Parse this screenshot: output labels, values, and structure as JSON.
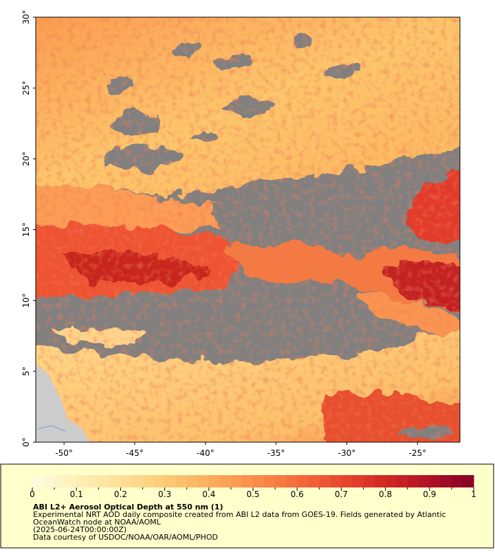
{
  "map": {
    "lon_range": [
      -52,
      -22
    ],
    "lat_range": [
      0,
      30
    ],
    "lon_ticks": [
      {
        "value": -50,
        "label": "-50°"
      },
      {
        "value": -45,
        "label": "-45°"
      },
      {
        "value": -40,
        "label": "-40°"
      },
      {
        "value": -35,
        "label": "-35°"
      },
      {
        "value": -30,
        "label": "-30°"
      },
      {
        "value": -25,
        "label": "-25°"
      }
    ],
    "lat_ticks": [
      {
        "value": 0,
        "label": "0°"
      },
      {
        "value": 5,
        "label": "5°"
      },
      {
        "value": 10,
        "label": "10°"
      },
      {
        "value": 15,
        "label": "15°"
      },
      {
        "value": 20,
        "label": "20°"
      },
      {
        "value": 25,
        "label": "25°"
      },
      {
        "value": 30,
        "label": "30°"
      }
    ]
  },
  "colorbar": {
    "range": [
      0,
      1
    ],
    "ticks": [
      0,
      0.1,
      0.2,
      0.3,
      0.4,
      0.5,
      0.6,
      0.7,
      0.8,
      0.9,
      1
    ],
    "minor_ticks": [
      0.05,
      0.15,
      0.25,
      0.35,
      0.45,
      0.55,
      0.65,
      0.75,
      0.85,
      0.95
    ],
    "colors": [
      "#fefadc",
      "#fff0b8",
      "#fee29a",
      "#fed07c",
      "#fdb965",
      "#fc9d52",
      "#f97f43",
      "#f26038",
      "#e4412d",
      "#cf2424",
      "#b01226",
      "#8a0026"
    ]
  },
  "legend": {
    "title": "ABI L2+ Aerosol Optical Depth at 550 nm (1)",
    "description": [
      "Experimental NRT AOD daily composite created from ABI L2 data from GOES-19. Fields generated by Atlantic",
      "OceanWatch node at NOAA/AOML",
      "(2025-06-24T00:00:00Z)",
      "Data courtesy of USDOC/NOAA/OAR/AOML/PHOD"
    ]
  }
}
